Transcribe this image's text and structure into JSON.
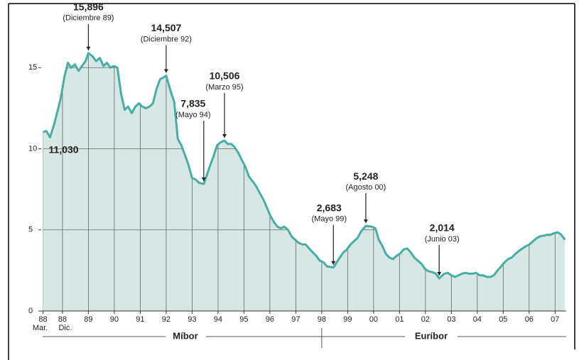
{
  "chart_data": {
    "type": "area",
    "color": "#46aea6",
    "fill": "#d6e7e4",
    "xlim": [
      1988.1,
      2008.35
    ],
    "ylim": [
      0,
      16.5
    ],
    "yticks": [
      0,
      5,
      10,
      15
    ],
    "xticks": [
      {
        "value": 1988.17,
        "label": "88"
      },
      {
        "value": 1988.92,
        "label": "88"
      },
      {
        "value": 1989.92,
        "label": "89"
      },
      {
        "value": 1990.92,
        "label": "90"
      },
      {
        "value": 1991.92,
        "label": "91"
      },
      {
        "value": 1992.92,
        "label": "92"
      },
      {
        "value": 1993.92,
        "label": "93"
      },
      {
        "value": 1994.92,
        "label": "94"
      },
      {
        "value": 1995.92,
        "label": "95"
      },
      {
        "value": 1996.92,
        "label": "96"
      },
      {
        "value": 1997.92,
        "label": "97"
      },
      {
        "value": 1998.92,
        "label": "98"
      },
      {
        "value": 1999.92,
        "label": "99"
      },
      {
        "value": 2000.92,
        "label": "00"
      },
      {
        "value": 2001.92,
        "label": "01"
      },
      {
        "value": 2002.92,
        "label": "02"
      },
      {
        "value": 2003.92,
        "label": "03"
      },
      {
        "value": 2004.92,
        "label": "04"
      },
      {
        "value": 2005.92,
        "label": "05"
      },
      {
        "value": 2006.92,
        "label": "06"
      },
      {
        "value": 2007.92,
        "label": "07"
      }
    ],
    "x_start_notes": [
      "Mar.",
      "Dic."
    ],
    "segments": [
      "Míbor",
      "Euríbor"
    ],
    "x": [
      1988.17,
      1988.3,
      1988.44,
      1988.58,
      1988.71,
      1988.85,
      1988.99,
      1989.13,
      1989.26,
      1989.4,
      1989.54,
      1989.67,
      1989.81,
      1989.92,
      1990.08,
      1990.22,
      1990.36,
      1990.5,
      1990.63,
      1990.77,
      1990.91,
      1991.04,
      1991.18,
      1991.32,
      1991.45,
      1991.59,
      1991.73,
      1991.87,
      1992.0,
      1992.14,
      1992.28,
      1992.41,
      1992.55,
      1992.69,
      1992.82,
      1992.92,
      1993.1,
      1993.23,
      1993.37,
      1993.51,
      1993.65,
      1993.78,
      1993.92,
      1994.06,
      1994.19,
      1994.37,
      1994.47,
      1994.6,
      1994.74,
      1994.88,
      1995.02,
      1995.17,
      1995.29,
      1995.43,
      1995.56,
      1995.7,
      1995.84,
      1995.97,
      1996.11,
      1996.25,
      1996.39,
      1996.52,
      1996.66,
      1996.8,
      1996.93,
      1997.07,
      1997.21,
      1997.34,
      1997.48,
      1997.62,
      1997.76,
      1997.89,
      1998.03,
      1998.17,
      1998.3,
      1998.44,
      1998.58,
      1998.71,
      1998.85,
      1998.99,
      1999.13,
      1999.37,
      1999.62,
      1999.75,
      1999.89,
      2000.03,
      2000.16,
      2000.3,
      2000.44,
      2000.62,
      2000.85,
      2000.99,
      2001.12,
      2001.26,
      2001.4,
      2001.53,
      2001.67,
      2001.81,
      2001.95,
      2002.08,
      2002.22,
      2002.36,
      2002.49,
      2002.63,
      2002.77,
      2002.9,
      2003.04,
      2003.18,
      2003.32,
      2003.45,
      2003.65,
      2003.78,
      2003.92,
      2004.06,
      2004.19,
      2004.33,
      2004.47,
      2004.6,
      2004.74,
      2004.88,
      2005.01,
      2005.15,
      2005.29,
      2005.43,
      2005.56,
      2005.7,
      2005.84,
      2005.97,
      2006.11,
      2006.25,
      2006.38,
      2006.52,
      2006.66,
      2006.8,
      2006.93,
      2007.07,
      2007.21,
      2007.34,
      2007.48,
      2007.62,
      2007.75,
      2007.89,
      2008.03,
      2008.16,
      2008.3
    ],
    "values": [
      11.03,
      11.1,
      10.7,
      11.4,
      12.2,
      13.1,
      14.4,
      15.3,
      15.0,
      15.2,
      14.8,
      15.1,
      15.4,
      15.896,
      15.7,
      15.4,
      15.6,
      15.1,
      15.3,
      15.0,
      15.1,
      15.0,
      13.4,
      12.4,
      12.6,
      12.2,
      12.6,
      12.8,
      12.6,
      12.5,
      12.6,
      12.8,
      13.7,
      14.3,
      14.4,
      14.507,
      13.5,
      12.9,
      10.6,
      10.2,
      9.6,
      9.0,
      8.2,
      8.1,
      7.9,
      7.835,
      8.3,
      8.9,
      9.5,
      10.2,
      10.4,
      10.506,
      10.3,
      10.3,
      10.1,
      9.75,
      9.3,
      8.9,
      8.3,
      8.0,
      7.7,
      7.3,
      6.9,
      6.4,
      5.9,
      5.5,
      5.2,
      5.1,
      5.2,
      5.0,
      4.6,
      4.4,
      4.2,
      4.1,
      4.1,
      3.85,
      3.6,
      3.4,
      3.1,
      3.0,
      2.75,
      2.683,
      3.3,
      3.6,
      3.8,
      4.1,
      4.3,
      4.5,
      4.9,
      5.248,
      5.2,
      5.1,
      4.4,
      4.0,
      3.5,
      3.3,
      3.2,
      3.4,
      3.55,
      3.8,
      3.85,
      3.6,
      3.3,
      3.1,
      2.9,
      2.6,
      2.45,
      2.4,
      2.3,
      2.014,
      2.3,
      2.35,
      2.2,
      2.1,
      2.2,
      2.3,
      2.35,
      2.3,
      2.3,
      2.35,
      2.2,
      2.2,
      2.1,
      2.1,
      2.2,
      2.5,
      2.75,
      3.0,
      3.2,
      3.3,
      3.5,
      3.7,
      3.85,
      4.0,
      4.1,
      4.3,
      4.5,
      4.6,
      4.65,
      4.7,
      4.7,
      4.8,
      4.85,
      4.7,
      4.4
    ],
    "annotations": [
      {
        "label": "11,030",
        "x": 1988.17,
        "y": 11.03
      },
      {
        "label": "15,896",
        "note": "(Diciembre 89)",
        "x": 1989.92,
        "y": 15.896
      },
      {
        "label": "14,507",
        "note": "(Diciembre 92)",
        "x": 1992.92,
        "y": 14.507
      },
      {
        "label": "7,835",
        "note": "(Mayo 94)",
        "x": 1994.37,
        "y": 7.835
      },
      {
        "label": "10,506",
        "note": "(Marzo 95)",
        "x": 1995.17,
        "y": 10.506
      },
      {
        "label": "2,683",
        "note": "(Mayo 99)",
        "x": 1999.37,
        "y": 2.683
      },
      {
        "label": "5,248",
        "note": "(Agosto 00)",
        "x": 2000.62,
        "y": 5.248
      },
      {
        "label": "2,014",
        "note": "(Junio 03)",
        "x": 2003.45,
        "y": 2.014
      }
    ]
  }
}
